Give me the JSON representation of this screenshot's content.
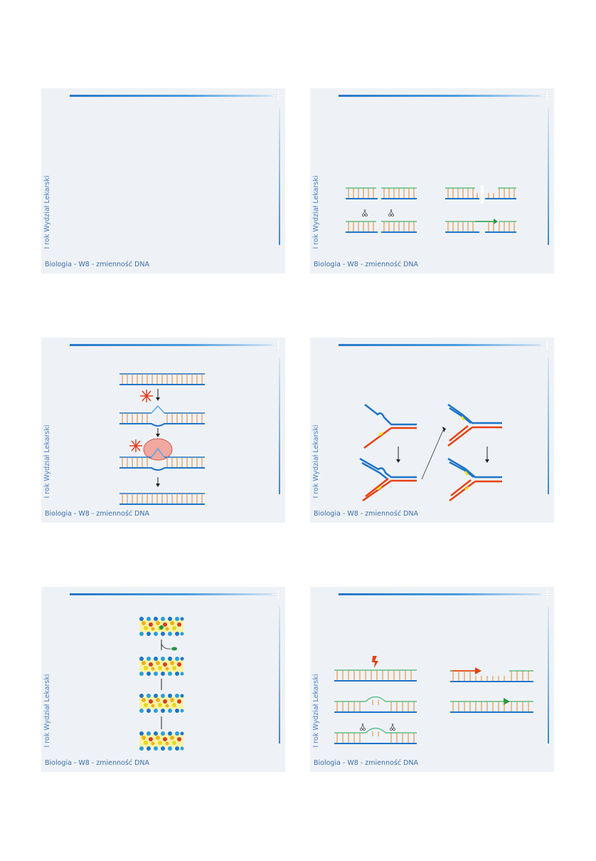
{
  "slides": [
    {
      "side_label": "I rok Wydział Lekarski",
      "footer": "Biologia - W8 - zmienność DNA"
    },
    {
      "side_label": "I rok Wydział Lekarski",
      "footer": "Biologia - W8 - zmienność DNA"
    },
    {
      "side_label": "I rok Wydział Lekarski",
      "footer": "Biologia - W8 - zmienność DNA"
    },
    {
      "side_label": "I rok Wydział Lekarski",
      "footer": "Biologia - W8 - zmienność DNA"
    },
    {
      "side_label": "I rok Wydział Lekarski",
      "footer": "Biologia - W8 - zmienność DNA"
    },
    {
      "side_label": "I rok Wydział Lekarski",
      "footer": "Biologia - W8 - zmienność DNA"
    }
  ],
  "colors": {
    "slide_bg": "#eef2f6",
    "accent_blue": "#2a78c6",
    "strand_blue": "#1f74c8",
    "rung_orange": "#e0862a",
    "strand_red": "#e8400f",
    "strand_green": "#5bbf88",
    "arrow_green": "#1f9a40",
    "enzyme_pink": "#f0a8a0",
    "mismatch_yellow": "#f3e21a"
  },
  "icons": [
    "scissors-icon",
    "star-burst-icon",
    "lightning-icon",
    "arrow-down-icon",
    "arrow-right-icon"
  ]
}
